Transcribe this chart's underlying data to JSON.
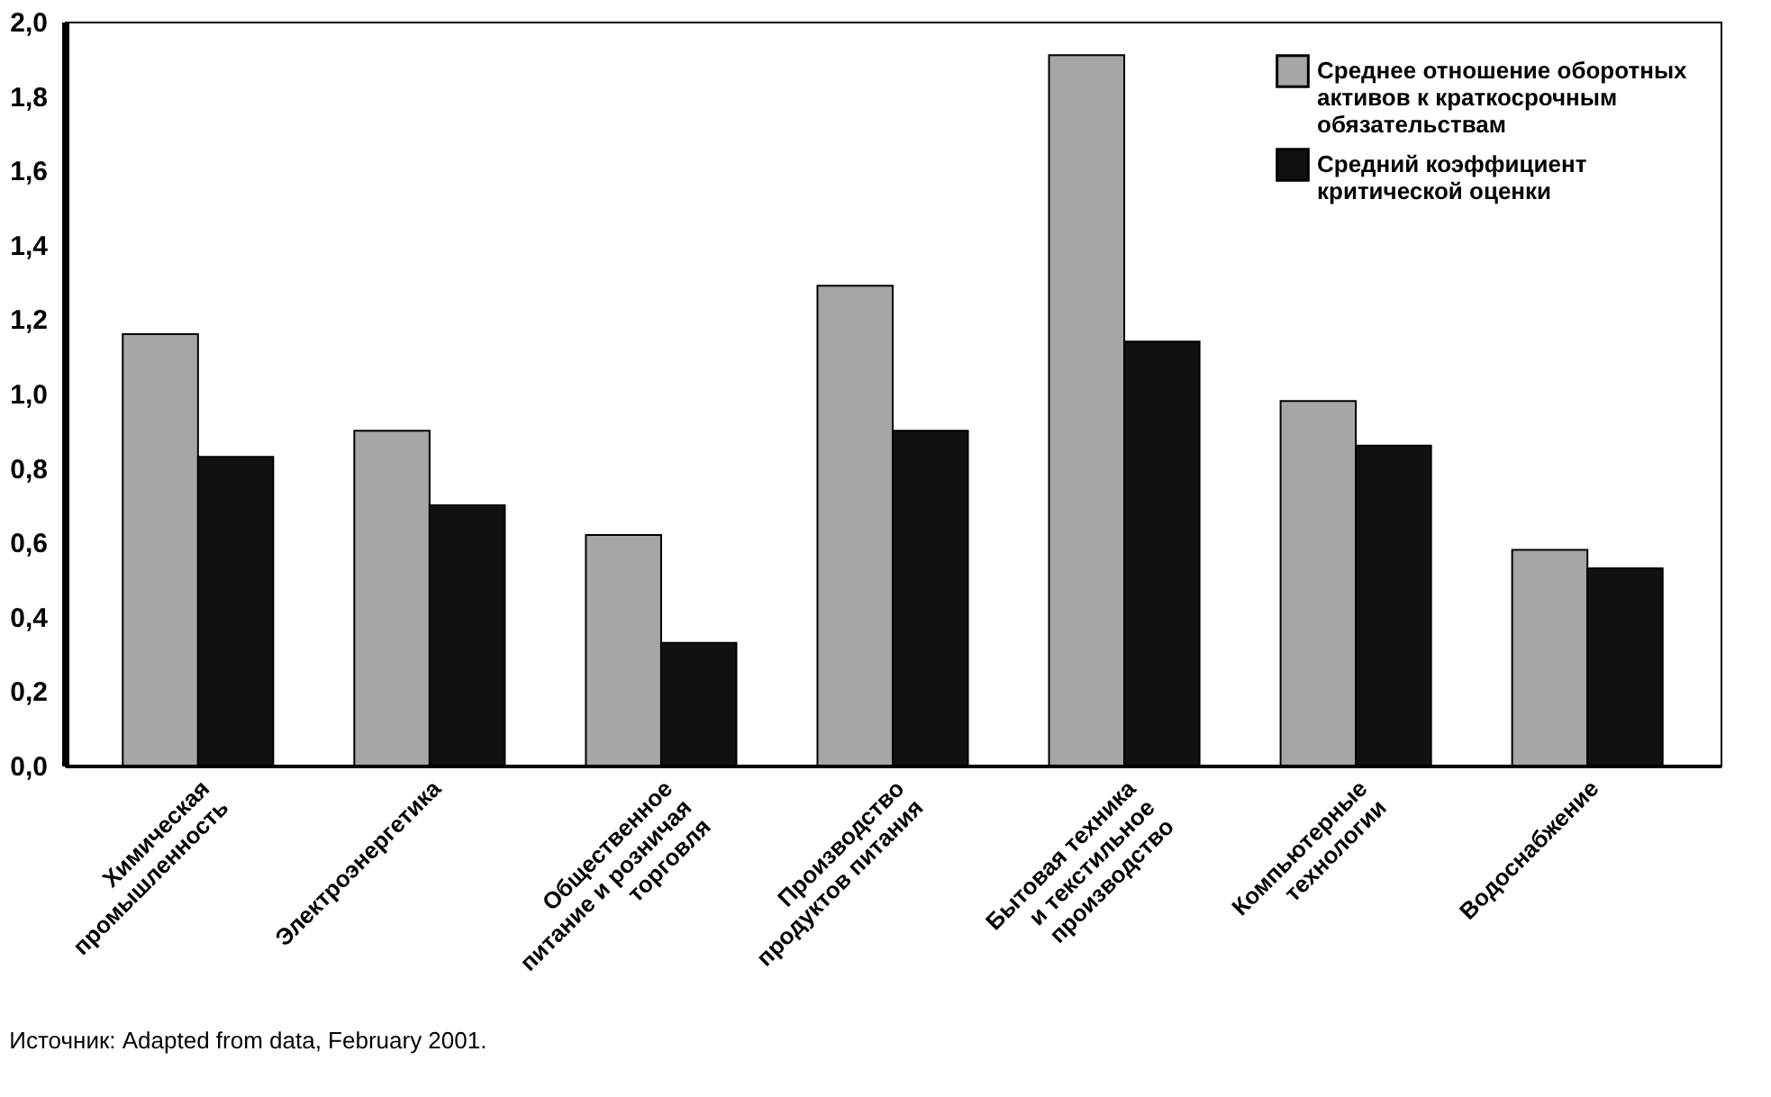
{
  "chart_data": {
    "type": "bar",
    "categories": [
      "Химическая\nпромышленность",
      "Электроэнергетика",
      "Общественное\nпитание и розничая\nторговля",
      "Производство\nпродуктов питания",
      "Бытовая техника\nи текстильное\nпроизводство",
      "Компьютерные\nтехнологии",
      "Водоснабжение"
    ],
    "series": [
      {
        "name": "Среднее отношение оборотных\nактивов к краткосрочным\nобязательствам",
        "color": "#a6a6a6",
        "values": [
          1.16,
          0.9,
          0.62,
          1.29,
          1.91,
          0.98,
          0.58
        ]
      },
      {
        "name": "Средний коэффициент\nкритической оценки",
        "color": "#111111",
        "values": [
          0.83,
          0.7,
          0.33,
          0.9,
          1.14,
          0.86,
          0.53
        ]
      }
    ],
    "ylim": [
      0,
      2
    ],
    "yticks": [
      {
        "value": 0,
        "label": "0,0"
      },
      {
        "value": 0.2,
        "label": "0,2"
      },
      {
        "value": 0.4,
        "label": "0,4"
      },
      {
        "value": 0.6,
        "label": "0,6"
      },
      {
        "value": 0.8,
        "label": "0,8"
      },
      {
        "value": 1.0,
        "label": "1,0"
      },
      {
        "value": 1.2,
        "label": "1,2"
      },
      {
        "value": 1.4,
        "label": "1,4"
      },
      {
        "value": 1.6,
        "label": "1,6"
      },
      {
        "value": 1.8,
        "label": "1,8"
      },
      {
        "value": 2.0,
        "label": "2,0"
      }
    ],
    "grid": false,
    "legend": "top right",
    "annotations": [
      "Источник: Adapted from data, February 2001."
    ]
  }
}
